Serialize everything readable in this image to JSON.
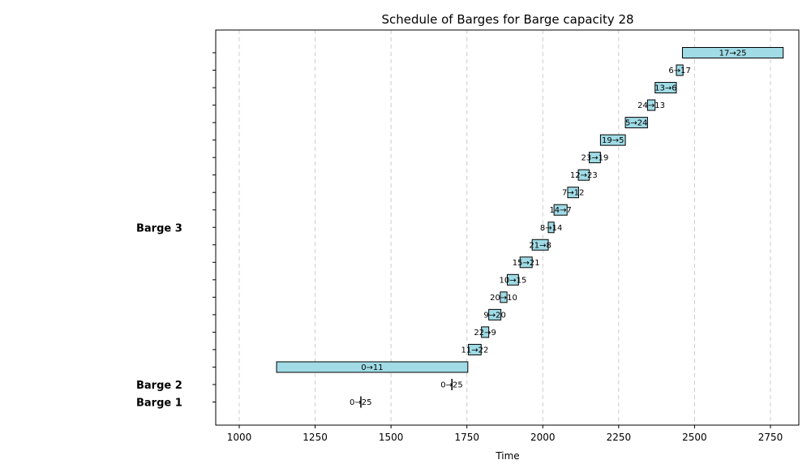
{
  "chart_data": {
    "type": "gantt",
    "title": "Schedule of Barges for Barge capacity 28",
    "xlabel": "Time",
    "ylabel": "",
    "xlim": [
      925,
      2850
    ],
    "xticks": [
      1000,
      1250,
      1500,
      1750,
      2000,
      2250,
      2500,
      2750
    ],
    "grid": "x-dashed",
    "bar_color": "#a0dbe6",
    "group_labels": [
      {
        "label": "Barge 1",
        "row": 0
      },
      {
        "label": "Barge 2",
        "row": 1
      },
      {
        "label": "Barge 3",
        "row": 10
      }
    ],
    "row_count": 21,
    "tasks": [
      {
        "label": "0→25",
        "row": 0,
        "start": 1400,
        "end": 1400
      },
      {
        "label": "0→25",
        "row": 1,
        "start": 1700,
        "end": 1700
      },
      {
        "label": "0→11",
        "row": 2,
        "start": 1123,
        "end": 1753
      },
      {
        "label": "11→22",
        "row": 3,
        "start": 1755,
        "end": 1797
      },
      {
        "label": "22→9",
        "row": 4,
        "start": 1798,
        "end": 1822
      },
      {
        "label": "9→20",
        "row": 5,
        "start": 1822,
        "end": 1862
      },
      {
        "label": "20→10",
        "row": 6,
        "start": 1860,
        "end": 1882
      },
      {
        "label": "10→15",
        "row": 7,
        "start": 1883,
        "end": 1920
      },
      {
        "label": "15→21",
        "row": 8,
        "start": 1925,
        "end": 1965
      },
      {
        "label": "21→8",
        "row": 9,
        "start": 1965,
        "end": 2018
      },
      {
        "label": "8→14",
        "row": 10,
        "start": 2018,
        "end": 2037
      },
      {
        "label": "14→7",
        "row": 11,
        "start": 2037,
        "end": 2080
      },
      {
        "label": "7→12",
        "row": 12,
        "start": 2082,
        "end": 2118
      },
      {
        "label": "12→23",
        "row": 13,
        "start": 2117,
        "end": 2153
      },
      {
        "label": "23→19",
        "row": 14,
        "start": 2153,
        "end": 2190
      },
      {
        "label": "19→5",
        "row": 15,
        "start": 2190,
        "end": 2272
      },
      {
        "label": "5→24",
        "row": 16,
        "start": 2272,
        "end": 2345
      },
      {
        "label": "24→13",
        "row": 17,
        "start": 2345,
        "end": 2370
      },
      {
        "label": "13→6",
        "row": 18,
        "start": 2370,
        "end": 2440
      },
      {
        "label": "6→17",
        "row": 19,
        "start": 2440,
        "end": 2462
      },
      {
        "label": "17→25",
        "row": 20,
        "start": 2460,
        "end": 2792
      }
    ]
  }
}
